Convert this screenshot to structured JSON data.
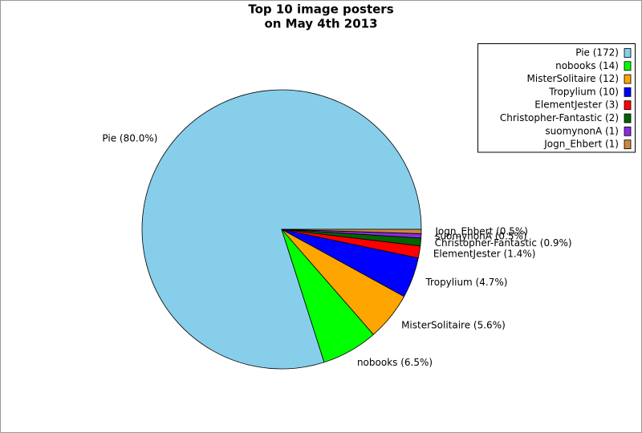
{
  "chart_data": {
    "type": "pie",
    "title": [
      "Top 10 image posters",
      "on May 4th 2013"
    ],
    "categories": [
      "Pie (172)",
      "nobooks (14)",
      "MisterSolitaire (12)",
      "Tropylium (10)",
      "ElementJester (3)",
      "Christopher-Fantastic (2)",
      "suomynonA (1)",
      "Jogn_Ehbert (1)"
    ],
    "values": [
      80.0,
      6.5,
      5.6,
      4.7,
      1.4,
      0.9,
      0.5,
      0.5
    ],
    "value_labels": [
      "Pie (80.0%)",
      "nobooks (6.5%)",
      "MisterSolitaire (5.6%)",
      "Tropylium (4.7%)",
      "ElementJester (1.4%)",
      "Christopher-Fantastic (0.9%)",
      "suomynonA (0.5%)",
      "Jogn_Ehbert (0.5%)"
    ],
    "colors": [
      "#87ceeb",
      "#00ff00",
      "#ffa500",
      "#0000ff",
      "#ff0000",
      "#006400",
      "#8a2be2",
      "#cd853f"
    ],
    "legend": "upper right"
  }
}
